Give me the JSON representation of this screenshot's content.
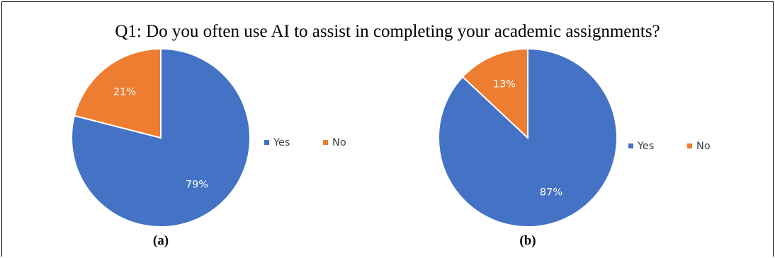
{
  "title": "Q1: Do you often use AI to assist in completing your academic assignments?",
  "legend": [
    "Yes",
    "No"
  ],
  "colors": {
    "Yes": "#4472C4",
    "No": "#ED7D31"
  },
  "chart_data": [
    {
      "type": "pie",
      "caption": "(a)",
      "categories": [
        "Yes",
        "No"
      ],
      "values": [
        79,
        21
      ],
      "labels": [
        "79%",
        "21%"
      ],
      "legend_placement": "right"
    },
    {
      "type": "pie",
      "caption": "(b)",
      "categories": [
        "Yes",
        "No"
      ],
      "values": [
        87,
        13
      ],
      "labels": [
        "87%",
        "13%"
      ],
      "legend_placement": "right"
    }
  ]
}
